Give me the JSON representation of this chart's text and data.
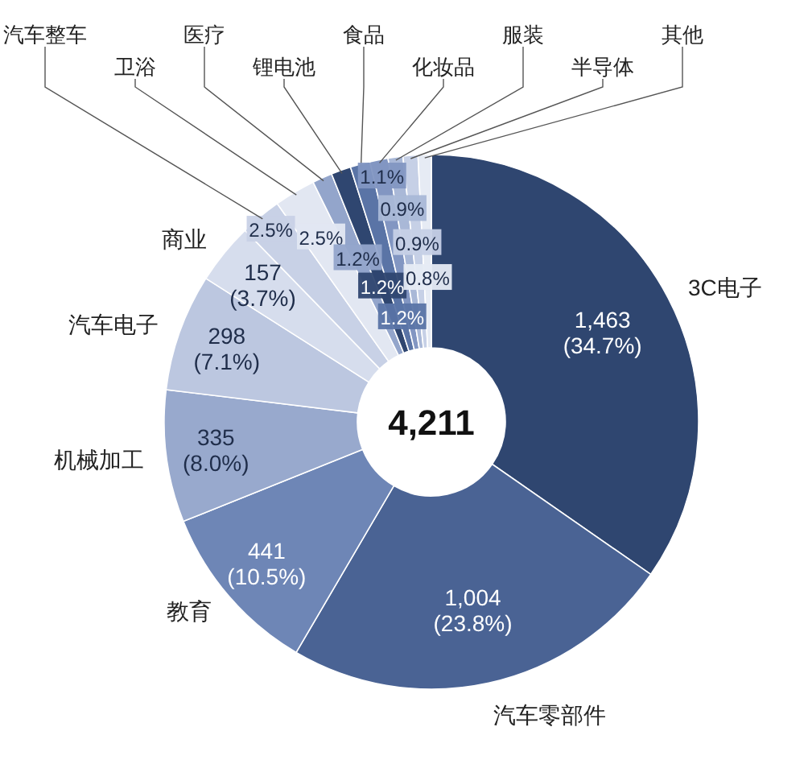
{
  "chart_data": {
    "type": "donut",
    "categories": [
      "3C电子",
      "汽车零部件",
      "教育",
      "机械加工",
      "汽车电子",
      "商业",
      "汽车整车",
      "卫浴",
      "医疗",
      "锂电池",
      "食品",
      "化妆品",
      "服装",
      "半导体",
      "其他"
    ],
    "values": [
      34.7,
      23.8,
      10.5,
      8.0,
      7.1,
      3.7,
      2.5,
      2.5,
      1.2,
      1.2,
      1.2,
      1.1,
      0.9,
      0.9,
      0.8
    ],
    "value_labels": [
      "1,463\n(34.7%)",
      "1,004\n(23.8%)",
      "441\n(10.5%)",
      "335\n(8.0%)",
      "298\n(7.1%)",
      "157\n(3.7%)",
      "2.5%",
      "2.5%",
      "1.2%",
      "1.2%",
      "1.2%",
      "1.1%",
      "0.9%",
      "0.9%",
      "0.8%"
    ],
    "colors": [
      "#2f4670",
      "#4a6394",
      "#6e86b6",
      "#98a9cd",
      "#bcc7e0",
      "#d6dded",
      "#c8d1e6",
      "#e2e7f2",
      "#93a5cb",
      "#2f4670",
      "#5a74a6",
      "#8296c2",
      "#a9b8d7",
      "#c6d0e6",
      "#e6ebf4"
    ],
    "annotations": [
      "4,211"
    ]
  }
}
